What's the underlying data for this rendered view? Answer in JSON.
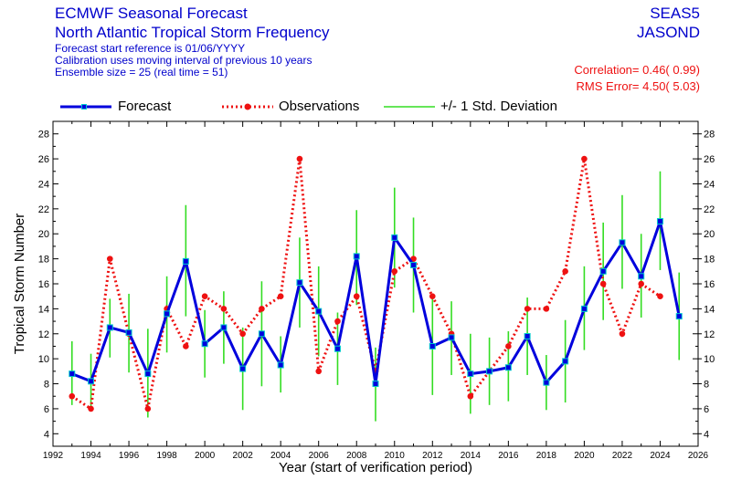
{
  "header": {
    "title": "ECMWF Seasonal Forecast",
    "subtitle": "North Atlantic Tropical Storm Frequency",
    "notes": [
      "Forecast start reference is 01/06/YYYY",
      "Calibration uses moving interval of previous 10 years",
      "Ensemble size =  25   (real time = 51)"
    ],
    "system": "SEAS5",
    "season": "JASOND",
    "correlation": "Correlation= 0.46( 0.99)",
    "rms_error": "RMS Error= 4.50( 5.03)"
  },
  "legend": {
    "forecast": "Forecast",
    "observations": "Observations",
    "std": "+/- 1 Std. Deviation"
  },
  "colors": {
    "forecast": "#0000dd",
    "observations": "#ee1111",
    "std": "#33dd22",
    "axis": "#000000"
  },
  "chart_data": {
    "type": "line",
    "xlabel": "Year (start of verification period)",
    "ylabel": "Tropical Storm Number",
    "xlim": [
      1992,
      2026
    ],
    "ylim": [
      3,
      29
    ],
    "xticks": [
      1992,
      1994,
      1996,
      1998,
      2000,
      2002,
      2004,
      2006,
      2008,
      2010,
      2012,
      2014,
      2016,
      2018,
      2020,
      2022,
      2024,
      2026
    ],
    "yticks": [
      4,
      6,
      8,
      10,
      12,
      14,
      16,
      18,
      20,
      22,
      24,
      26,
      28
    ],
    "series": [
      {
        "name": "Forecast",
        "x": [
          1993,
          1994,
          1995,
          1996,
          1997,
          1998,
          1999,
          2000,
          2001,
          2002,
          2003,
          2004,
          2005,
          2006,
          2007,
          2008,
          2009,
          2010,
          2011,
          2012,
          2013,
          2014,
          2015,
          2016,
          2017,
          2018,
          2019,
          2020,
          2021,
          2022,
          2023,
          2024,
          2025
        ],
        "values": [
          8.8,
          8.2,
          12.5,
          12.1,
          8.8,
          13.6,
          17.8,
          11.2,
          12.5,
          9.2,
          12.0,
          9.5,
          16.1,
          13.8,
          10.8,
          18.2,
          8.0,
          19.7,
          17.5,
          11.0,
          11.7,
          8.8,
          9.0,
          9.3,
          11.8,
          8.1,
          9.8,
          14.0,
          17.0,
          19.3,
          16.6,
          21.0,
          13.4
        ]
      },
      {
        "name": "Observations",
        "x": [
          1993,
          1994,
          1995,
          1996,
          1997,
          1998,
          1999,
          2000,
          2001,
          2002,
          2003,
          2004,
          2005,
          2006,
          2007,
          2008,
          2009,
          2010,
          2011,
          2012,
          2013,
          2014,
          2015,
          2016,
          2017,
          2018,
          2019,
          2020,
          2021,
          2022,
          2023,
          2024
        ],
        "values": [
          7,
          6,
          18,
          12,
          6,
          14,
          11,
          15,
          14,
          12,
          14,
          15,
          26,
          9,
          13,
          15,
          9,
          17,
          18,
          15,
          12,
          7,
          9,
          11,
          14,
          14,
          17,
          26,
          16,
          12,
          16,
          15
        ]
      },
      {
        "name": "+/- 1 Std. Deviation",
        "x": [
          1993,
          1994,
          1995,
          1996,
          1997,
          1998,
          1999,
          2000,
          2001,
          2002,
          2003,
          2004,
          2005,
          2006,
          2007,
          2008,
          2009,
          2010,
          2011,
          2012,
          2013,
          2014,
          2015,
          2016,
          2017,
          2018,
          2019,
          2020,
          2021,
          2022,
          2023,
          2024,
          2025
        ],
        "low": [
          6.3,
          5.9,
          10.1,
          8.9,
          5.3,
          10.5,
          13.4,
          8.5,
          9.6,
          5.9,
          7.8,
          7.3,
          12.5,
          10.2,
          7.9,
          14.3,
          5.0,
          15.7,
          13.7,
          7.1,
          8.7,
          5.6,
          6.3,
          6.6,
          8.7,
          5.9,
          6.5,
          10.7,
          13.1,
          15.6,
          13.3,
          17.1,
          9.9
        ],
        "high": [
          11.4,
          10.4,
          14.8,
          15.2,
          12.4,
          16.6,
          22.3,
          13.9,
          15.4,
          12.5,
          16.2,
          11.8,
          19.7,
          17.4,
          13.7,
          21.9,
          10.9,
          23.7,
          21.3,
          14.9,
          14.6,
          12.0,
          11.7,
          12.2,
          14.9,
          10.3,
          13.1,
          17.4,
          20.9,
          23.1,
          20.0,
          25.0,
          16.9
        ]
      }
    ]
  }
}
